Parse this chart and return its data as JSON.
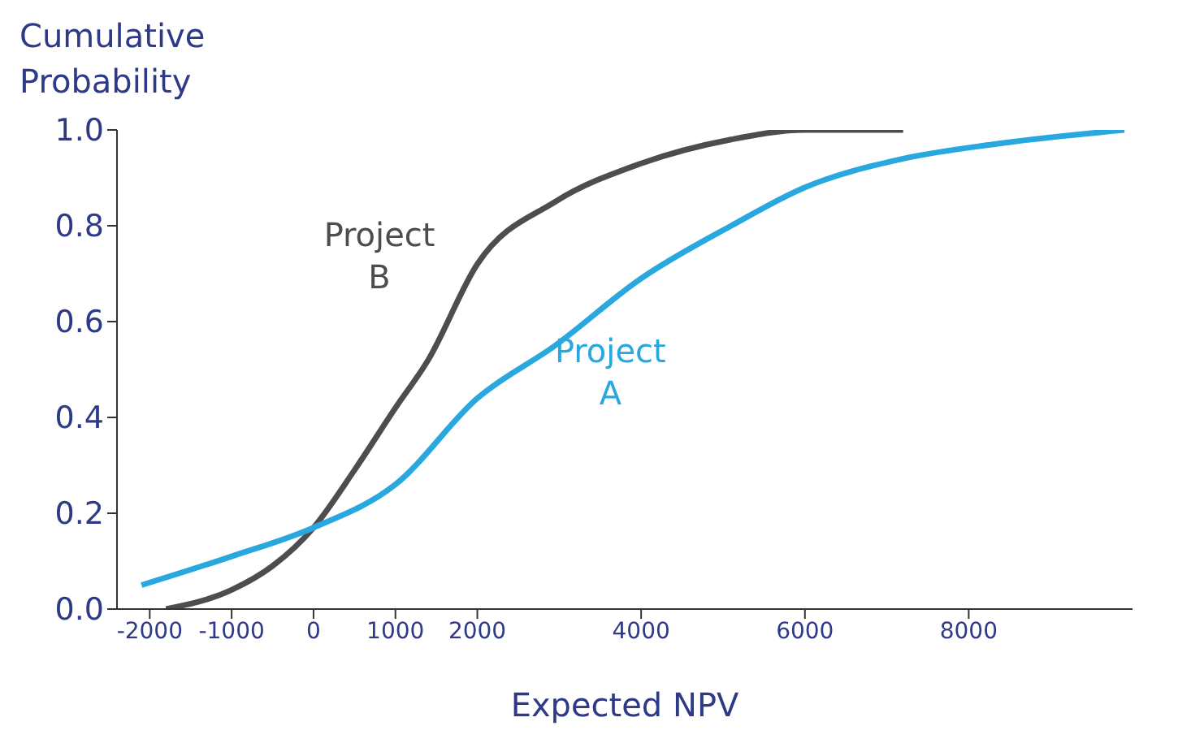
{
  "chart_data": {
    "type": "line",
    "ylabel": "Cumulative Probability",
    "xlabel": "Expected NPV",
    "xlim": [
      -2400,
      10000
    ],
    "xticks": [
      -2000,
      -1000,
      0,
      1000,
      2000,
      4000,
      6000,
      8000
    ],
    "ylim": [
      0,
      1
    ],
    "yticks": [
      {
        "value": 0,
        "label": "0.0"
      },
      {
        "value": 0.2,
        "label": "0.2"
      },
      {
        "value": 0.4,
        "label": "0.4"
      },
      {
        "value": 0.6,
        "label": "0.6"
      },
      {
        "value": 0.8,
        "label": "0.8"
      },
      {
        "value": 1,
        "label": "1.0"
      }
    ],
    "grid": false,
    "legend": false,
    "marker": "none",
    "line_style": "solid",
    "series": [
      {
        "name": "Project B",
        "color": "#4d4d4f",
        "x": [
          -1800,
          -1000,
          -500,
          0,
          500,
          1000,
          1400,
          2000,
          2950,
          4000,
          5100,
          6000,
          7200
        ],
        "values": [
          0,
          0.04,
          0.09,
          0.17,
          0.29,
          0.42,
          0.52,
          0.72,
          0.85,
          0.93,
          0.98,
          1.0,
          1.0
        ]
      },
      {
        "name": "Project A",
        "color": "#29a8df",
        "x": [
          -2100,
          -1000,
          0,
          1000,
          2000,
          2950,
          4000,
          5100,
          6000,
          7200,
          8300,
          9900
        ],
        "values": [
          0.05,
          0.11,
          0.17,
          0.26,
          0.44,
          0.55,
          0.69,
          0.8,
          0.88,
          0.94,
          0.97,
          1.0
        ]
      }
    ]
  }
}
